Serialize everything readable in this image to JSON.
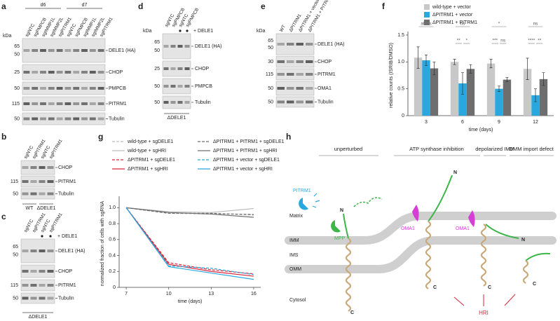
{
  "panels": {
    "a": {
      "letter": "a",
      "kda_label": "kDa",
      "groups": [
        "d6",
        "d7"
      ],
      "lanes": [
        "sgNTC",
        "sgPMPCB",
        "sgIMMP1L",
        "sgIMMP2L",
        "sgPITRM1",
        "sgNTC",
        "sgPMPCB",
        "sgIMMP1L",
        "sgIMMP2L",
        "sgPITRM1"
      ],
      "rows": [
        {
          "label": "DELE1 (HA)",
          "kda": [
            65,
            50
          ]
        },
        {
          "label": "CHOP",
          "kda": [
            25
          ]
        },
        {
          "label": "PMPCB",
          "kda": [
            50
          ]
        },
        {
          "label": "PITRM1",
          "kda": [
            115
          ]
        },
        {
          "label": "Tubulin",
          "kda": [
            50
          ]
        }
      ]
    },
    "b": {
      "letter": "b",
      "lanes": [
        "sgNTC",
        "sgPITRM1",
        "sgNTC",
        "sgPITRM1"
      ],
      "rows": [
        {
          "label": "CHOP",
          "kda": []
        },
        {
          "label": "PITRM1",
          "kda": [
            115
          ]
        },
        {
          "label": "Tubulin",
          "kda": [
            50
          ]
        }
      ],
      "footer": [
        "WT",
        "ΔDELE1"
      ]
    },
    "c": {
      "letter": "c",
      "lanes": [
        "sgNTC",
        "sgPITRM1",
        "sgNTC",
        "sgPITRM1"
      ],
      "treatment": "+ DELE1",
      "rows": [
        {
          "label": "DELE1 (HA)",
          "kda": [
            65,
            50
          ]
        },
        {
          "label": "CHOP",
          "kda": []
        },
        {
          "label": "PITRM1",
          "kda": [
            115
          ]
        },
        {
          "label": "Tubulin",
          "kda": [
            50
          ]
        }
      ],
      "footer": [
        "ΔDELE1"
      ]
    },
    "d": {
      "letter": "d",
      "kda_label": "kDa",
      "lanes": [
        "sgNTC",
        "sgPMPCB",
        "sgNTC",
        "sgPMPCB"
      ],
      "treatment": "+ DELE1",
      "rows": [
        {
          "label": "DELE1 (HA)",
          "kda": [
            65,
            50
          ]
        },
        {
          "label": "CHOP",
          "kda": [
            25
          ]
        },
        {
          "label": "PMPCB",
          "kda": [
            50
          ]
        },
        {
          "label": "Tubulin",
          "kda": [
            50
          ]
        }
      ],
      "footer": [
        "ΔDELE1"
      ]
    },
    "e": {
      "letter": "e",
      "kda_label": "kDa",
      "lanes": [
        "WT",
        "ΔPITRM1",
        "ΔPITRM1 + vector",
        "ΔPITRM1 + PITRM1"
      ],
      "rows": [
        {
          "label": "DELE1 (HA)",
          "kda": [
            65,
            50
          ]
        },
        {
          "label": "CHOP",
          "kda": [
            30
          ]
        },
        {
          "label": "PITRM1",
          "kda": [
            115
          ]
        },
        {
          "label": "OMA1",
          "kda": [
            50
          ]
        },
        {
          "label": "Tubulin",
          "kda": [
            50
          ]
        }
      ]
    }
  },
  "chart_data": [
    {
      "type": "bar",
      "panel_label": "f",
      "ylabel": "relative counts (ISRIB/DMSO)",
      "xlabel": "time (days)",
      "categories": [
        "3",
        "6",
        "9",
        "12"
      ],
      "series": [
        {
          "name": "wild-type + vector",
          "color": "#c8c8c8",
          "values": [
            1.08,
            1.0,
            0.97,
            0.87
          ],
          "errors": [
            0.2,
            0.05,
            0.08,
            0.2
          ]
        },
        {
          "name": "ΔPITRM1 + vector",
          "color": "#29a8e0",
          "values": [
            1.03,
            0.6,
            0.5,
            0.38
          ],
          "errors": [
            0.1,
            0.2,
            0.05,
            0.12
          ]
        },
        {
          "name": "ΔPITRM1 + PITRM1",
          "color": "#6e6e6e",
          "values": [
            0.88,
            0.87,
            0.67,
            0.68
          ],
          "errors": [
            0.12,
            0.08,
            0.04,
            0.12
          ]
        }
      ],
      "significance": [
        [
          "all ns"
        ],
        [
          "ns",
          "**",
          "*"
        ],
        [
          "*",
          "***",
          "ns"
        ],
        [
          "ns",
          "****",
          "**"
        ]
      ],
      "ylim": [
        0,
        1.5
      ],
      "yticks": [
        0,
        0.5,
        {
          "value": 1,
          "label": "1.0"
        },
        1.5
      ]
    },
    {
      "type": "line",
      "panel_label": "g",
      "ylabel": "normalized fraction of cells with sgRNA",
      "xlabel": "time (days)",
      "x": [
        7,
        10,
        13,
        16
      ],
      "series": [
        {
          "name": "wild-type + sgDELE1",
          "color": "#bdbdbd",
          "dashed": true,
          "values": [
            1,
            0.93,
            0.92,
            0.92
          ]
        },
        {
          "name": "wild-type + sgHRI",
          "color": "#bdbdbd",
          "dashed": false,
          "values": [
            1,
            0.95,
            0.94,
            0.99
          ]
        },
        {
          "name": "ΔPITRM1 + sgDELE1",
          "color": "#d7263d",
          "dashed": true,
          "values": [
            1,
            0.31,
            0.22,
            0.17
          ]
        },
        {
          "name": "ΔPITRM1 + sgHRI",
          "color": "#d7263d",
          "dashed": false,
          "values": [
            1,
            0.29,
            0.2,
            0.14
          ]
        },
        {
          "name": "ΔPITRM1 + PITRM1 + sgDELE1",
          "color": "#6e6e6e",
          "dashed": true,
          "values": [
            1,
            0.93,
            0.93,
            0.91
          ]
        },
        {
          "name": "ΔPITRM1 + PITRM1 + sgHRI",
          "color": "#6e6e6e",
          "dashed": false,
          "values": [
            1,
            0.94,
            0.92,
            0.88
          ]
        },
        {
          "name": "ΔPITRM1 + vector + sgDELE1",
          "color": "#29a8e0",
          "dashed": true,
          "values": [
            1,
            0.27,
            0.24,
            0.16
          ]
        },
        {
          "name": "ΔPITRM1 + vector + sgHRI",
          "color": "#29a8e0",
          "dashed": false,
          "values": [
            1,
            0.26,
            0.18,
            0.1
          ]
        }
      ],
      "xlim": [
        6.5,
        16.5
      ],
      "xticks": [
        7,
        10,
        13,
        16
      ],
      "ylim": [
        0,
        1.1
      ],
      "yticks": [
        0,
        0.2,
        0.4,
        0.6,
        0.8,
        {
          "value": 1,
          "label": "1.0"
        }
      ]
    }
  ],
  "diagram": {
    "letter": "h",
    "conditions": [
      "unperturbed",
      "ATP synthase inhibition",
      "depolarized IMM",
      "OMM import defect"
    ],
    "compartments": [
      "Matrix",
      "IMM",
      "IMS",
      "OMM",
      "Cytosol"
    ],
    "pitrm1": "PITRM1",
    "mpp": "MPP",
    "oma1": [
      "OMA1",
      "OMA1"
    ],
    "hri": "HRI",
    "termini": [
      "N",
      "C",
      "N",
      "C",
      "N",
      "C",
      "C"
    ]
  }
}
